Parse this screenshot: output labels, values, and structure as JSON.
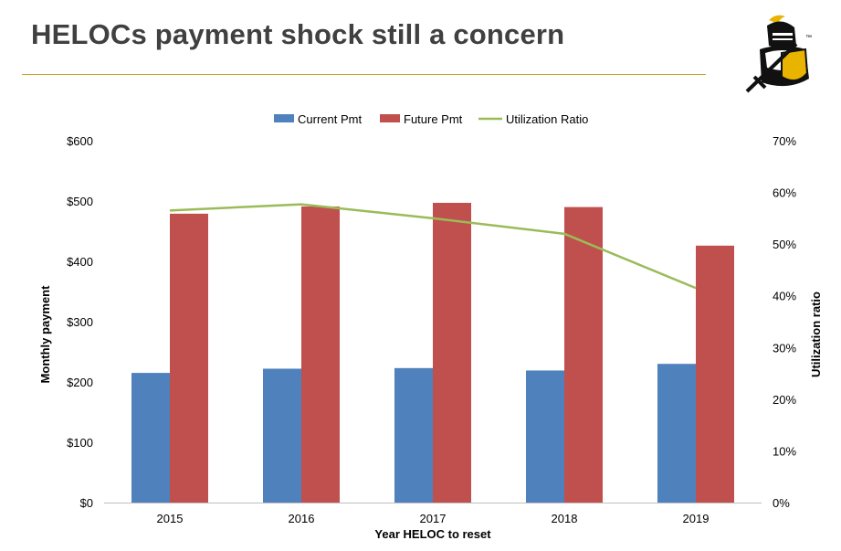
{
  "slide": {
    "title": "HELOCs payment shock still a concern",
    "logo_mark": "™"
  },
  "colors": {
    "current_pmt": "#4f81bd",
    "future_pmt": "#c0504d",
    "utilization": "#9bbb59",
    "title_rule": "#c9a227",
    "title_text": "#404040"
  },
  "chart_data": {
    "type": "bar",
    "title": "",
    "categories": [
      "2015",
      "2016",
      "2017",
      "2018",
      "2019"
    ],
    "series": [
      {
        "name": "Current Pmt",
        "type": "bar",
        "axis": "left",
        "values": [
          215,
          222,
          223,
          219,
          230
        ]
      },
      {
        "name": "Future Pmt",
        "type": "bar",
        "axis": "left",
        "values": [
          479,
          491,
          497,
          490,
          426
        ]
      },
      {
        "name": "Utilization Ratio",
        "type": "line",
        "axis": "right",
        "values": [
          0.565,
          0.577,
          0.55,
          0.52,
          0.415
        ]
      }
    ],
    "xlabel": "Year HELOC to reset",
    "ylabel": "Monthly payment",
    "y2label": "Utilization ratio",
    "ylim": [
      0,
      600
    ],
    "y2lim": [
      0,
      0.7
    ],
    "yticks": [
      "$0",
      "$100",
      "$200",
      "$300",
      "$400",
      "$500",
      "$600"
    ],
    "y2ticks": [
      "0%",
      "10%",
      "20%",
      "30%",
      "40%",
      "50%",
      "60%",
      "70%"
    ],
    "legend": "top",
    "grid": false
  }
}
